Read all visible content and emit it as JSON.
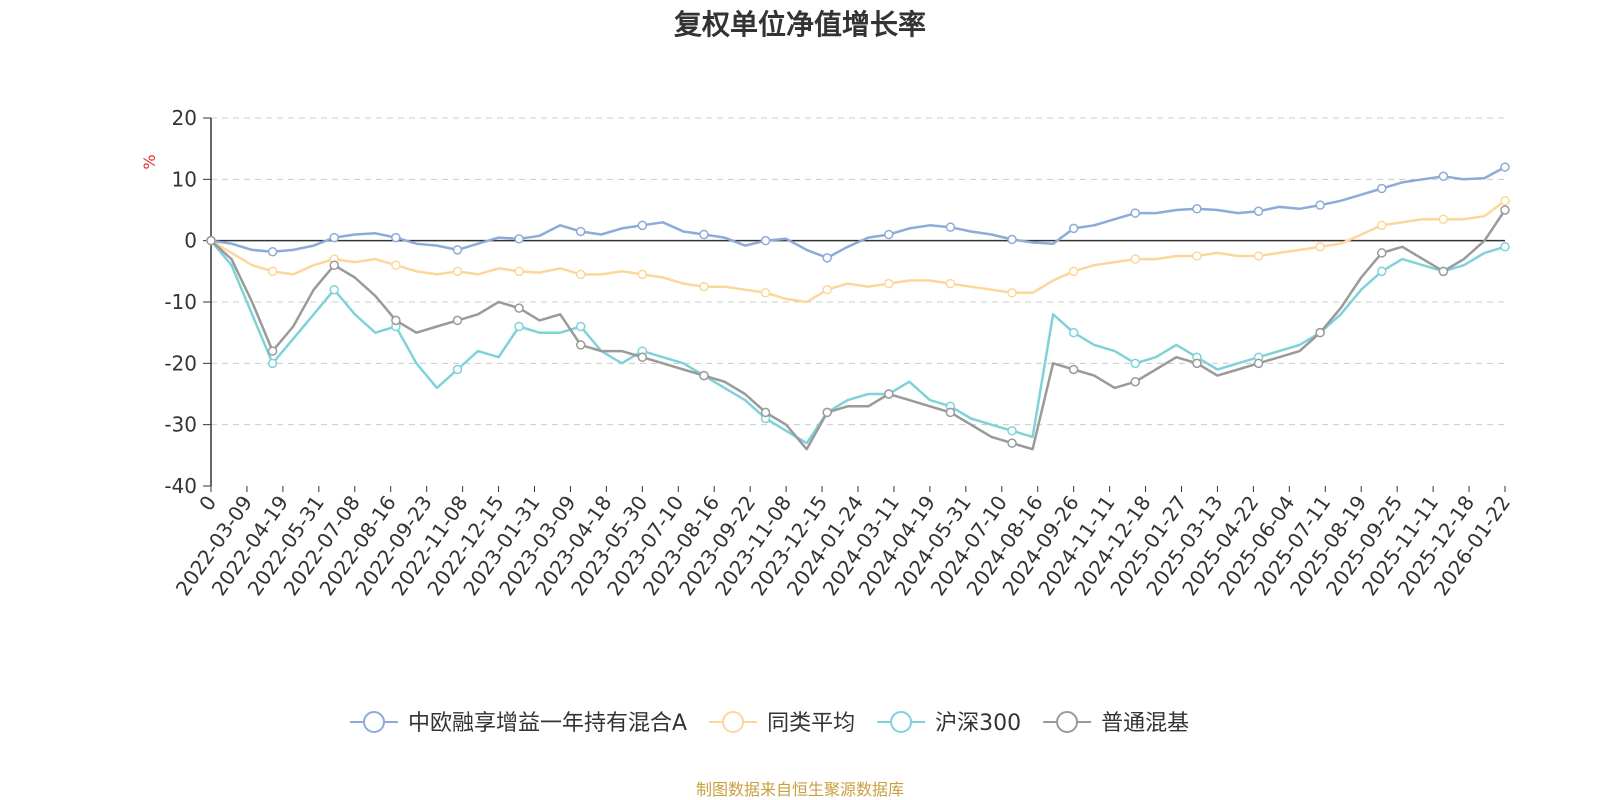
{
  "chart_data": {
    "type": "line",
    "title": "复权单位净值增长率",
    "ylabel": "%",
    "ylim": [
      -40,
      20
    ],
    "yticks": [
      20,
      10,
      0,
      -10,
      -20,
      -30,
      -40
    ],
    "x_tick_labels": [
      "0",
      "2022-03-09",
      "2022-04-19",
      "2022-05-31",
      "2022-07-08",
      "2022-08-16",
      "2022-09-23",
      "2022-11-08",
      "2022-12-15",
      "2023-01-31",
      "2023-03-09",
      "2023-04-18",
      "2023-05-30",
      "2023-07-10",
      "2023-08-16",
      "2023-09-22",
      "2023-11-08",
      "2023-12-15",
      "2024-01-24",
      "2024-03-11",
      "2024-04-19",
      "2024-05-31",
      "2024-07-10",
      "2024-08-16",
      "2024-09-26",
      "2024-11-11",
      "2024-12-18",
      "2025-01-27",
      "2025-03-13",
      "2025-04-22",
      "2025-06-04",
      "2025-07-11",
      "2025-08-19",
      "2025-09-25",
      "2025-11-11",
      "2025-12-18",
      "2026-01-22"
    ],
    "legend_position": "bottom",
    "grid": "horizontal-dashed",
    "series": [
      {
        "name": "中欧融享增益一年持有混合A",
        "color": "#8eaad9",
        "values": [
          0,
          -0.5,
          -1.5,
          -1.8,
          -1.5,
          -0.8,
          0.5,
          1,
          1.2,
          0.5,
          -0.5,
          -0.8,
          -1.5,
          -0.5,
          0.5,
          0.3,
          0.8,
          2.5,
          1.5,
          1,
          2,
          2.5,
          3,
          1.5,
          1,
          0.5,
          -0.8,
          0,
          0.3,
          -1.5,
          -2.8,
          -1,
          0.5,
          1,
          2,
          2.5,
          2.2,
          1.5,
          1,
          0.2,
          -0.3,
          -0.5,
          2,
          2.5,
          3.5,
          4.5,
          4.5,
          5,
          5.2,
          5,
          4.5,
          4.8,
          5.5,
          5.2,
          5.8,
          6.5,
          7.5,
          8.5,
          9.5,
          10,
          10.5,
          10,
          10.2,
          12
        ]
      },
      {
        "name": "同类平均",
        "color": "#fdd79a",
        "values": [
          0,
          -2,
          -4,
          -5,
          -5.5,
          -4,
          -3,
          -3.5,
          -3,
          -4,
          -5,
          -5.5,
          -5,
          -5.5,
          -4.5,
          -5,
          -5.2,
          -4.5,
          -5.5,
          -5.5,
          -5,
          -5.5,
          -6,
          -7,
          -7.5,
          -7.5,
          -8,
          -8.5,
          -9.5,
          -10,
          -8,
          -7,
          -7.5,
          -7,
          -6.5,
          -6.5,
          -7,
          -7.5,
          -8,
          -8.5,
          -8.5,
          -6.5,
          -5,
          -4,
          -3.5,
          -3,
          -3,
          -2.5,
          -2.5,
          -2,
          -2.5,
          -2.5,
          -2,
          -1.5,
          -1,
          -0.5,
          1,
          2.5,
          3,
          3.5,
          3.5,
          3.5,
          4,
          6.5
        ]
      },
      {
        "name": "沪深300",
        "color": "#7fd3d8",
        "values": [
          0,
          -4,
          -12,
          -20,
          -16,
          -12,
          -8,
          -12,
          -15,
          -14,
          -20,
          -24,
          -21,
          -18,
          -19,
          -14,
          -15,
          -15,
          -14,
          -18,
          -20,
          -18,
          -19,
          -20,
          -22,
          -24,
          -26,
          -29,
          -31,
          -33,
          -28,
          -26,
          -25,
          -25,
          -23,
          -26,
          -27,
          -29,
          -30,
          -31,
          -32,
          -12,
          -15,
          -17,
          -18,
          -20,
          -19,
          -17,
          -19,
          -21,
          -20,
          -19,
          -18,
          -17,
          -15,
          -12,
          -8,
          -5,
          -3,
          -4,
          -5,
          -4,
          -2,
          -1
        ]
      },
      {
        "name": "普通混基",
        "color": "#9a9a9a",
        "values": [
          0,
          -3,
          -10,
          -18,
          -14,
          -8,
          -4,
          -6,
          -9,
          -13,
          -15,
          -14,
          -13,
          -12,
          -10,
          -11,
          -13,
          -12,
          -17,
          -18,
          -18,
          -19,
          -20,
          -21,
          -22,
          -23,
          -25,
          -28,
          -30,
          -34,
          -28,
          -27,
          -27,
          -25,
          -26,
          -27,
          -28,
          -30,
          -32,
          -33,
          -34,
          -20,
          -21,
          -22,
          -24,
          -23,
          -21,
          -19,
          -20,
          -22,
          -21,
          -20,
          -19,
          -18,
          -15,
          -11,
          -6,
          -2,
          -1,
          -3,
          -5,
          -3,
          0,
          5
        ]
      }
    ]
  },
  "source_note": "制图数据来自恒生聚源数据库",
  "colors": {
    "axis": "#333333",
    "grid": "#cccccc",
    "unit": "#e03030",
    "source": "#c8a040"
  }
}
